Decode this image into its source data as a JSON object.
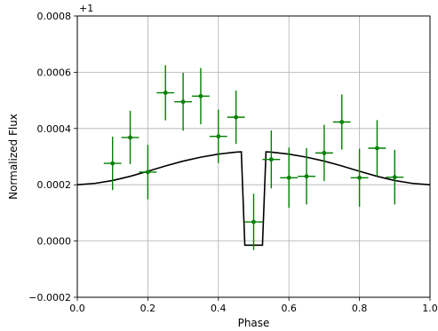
{
  "chart_data": {
    "type": "scatter",
    "xlabel": "Phase",
    "ylabel": "Normalized Flux",
    "offset_label": "+1",
    "xlim": [
      0.0,
      1.0
    ],
    "ylim": [
      -0.0002,
      0.0008
    ],
    "x_ticks": [
      0.0,
      0.2,
      0.4,
      0.6,
      0.8,
      1.0
    ],
    "x_tick_labels": [
      "0.0",
      "0.2",
      "0.4",
      "0.6",
      "0.8",
      "1.0"
    ],
    "y_ticks": [
      -0.0002,
      0.0,
      0.0002,
      0.0004,
      0.0006,
      0.0008
    ],
    "y_tick_labels": [
      "−0.0002",
      "0.0000",
      "0.0002",
      "0.0004",
      "0.0006",
      "0.0008"
    ],
    "grid": true,
    "colors": {
      "data": "#008000",
      "model": "#000000",
      "grid": "#b0b0b0"
    },
    "series": [
      {
        "kind": "errorbar",
        "x_err": 0.025,
        "points": [
          {
            "x": 0.1,
            "y": 0.000276,
            "yerr": 9.5e-05
          },
          {
            "x": 0.15,
            "y": 0.000368,
            "yerr": 9.5e-05
          },
          {
            "x": 0.2,
            "y": 0.000245,
            "yerr": 9.7e-05
          },
          {
            "x": 0.25,
            "y": 0.000527,
            "yerr": 9.8e-05
          },
          {
            "x": 0.3,
            "y": 0.000495,
            "yerr": 0.000103
          },
          {
            "x": 0.35,
            "y": 0.000515,
            "yerr": 0.0001
          },
          {
            "x": 0.4,
            "y": 0.000372,
            "yerr": 9.5e-05
          },
          {
            "x": 0.45,
            "y": 0.00044,
            "yerr": 9.5e-05
          },
          {
            "x": 0.5,
            "y": 6.8e-05,
            "yerr": 0.0001
          },
          {
            "x": 0.55,
            "y": 0.00029,
            "yerr": 0.000103
          },
          {
            "x": 0.6,
            "y": 0.000225,
            "yerr": 0.000107
          },
          {
            "x": 0.65,
            "y": 0.00023,
            "yerr": 0.0001
          },
          {
            "x": 0.7,
            "y": 0.000313,
            "yerr": 0.0001
          },
          {
            "x": 0.75,
            "y": 0.000423,
            "yerr": 9.8e-05
          },
          {
            "x": 0.8,
            "y": 0.000225,
            "yerr": 0.000103
          },
          {
            "x": 0.85,
            "y": 0.00033,
            "yerr": 0.0001
          },
          {
            "x": 0.9,
            "y": 0.000227,
            "yerr": 9.7e-05
          }
        ]
      },
      {
        "kind": "line",
        "x": [
          0.0,
          0.05,
          0.1,
          0.15,
          0.2,
          0.25,
          0.3,
          0.35,
          0.4,
          0.45,
          0.465,
          0.475,
          0.525,
          0.535,
          0.55,
          0.6,
          0.65,
          0.7,
          0.75,
          0.8,
          0.85,
          0.9,
          0.95,
          1.0
        ],
        "y": [
          0.0002,
          0.000205,
          0.000215,
          0.00023,
          0.000248,
          0.000267,
          0.000284,
          0.000298,
          0.000309,
          0.000316,
          0.000317,
          -1.5e-05,
          -1.5e-05,
          0.000317,
          0.000316,
          0.000309,
          0.000298,
          0.000284,
          0.000267,
          0.000248,
          0.00023,
          0.000215,
          0.000205,
          0.0002
        ]
      }
    ]
  }
}
